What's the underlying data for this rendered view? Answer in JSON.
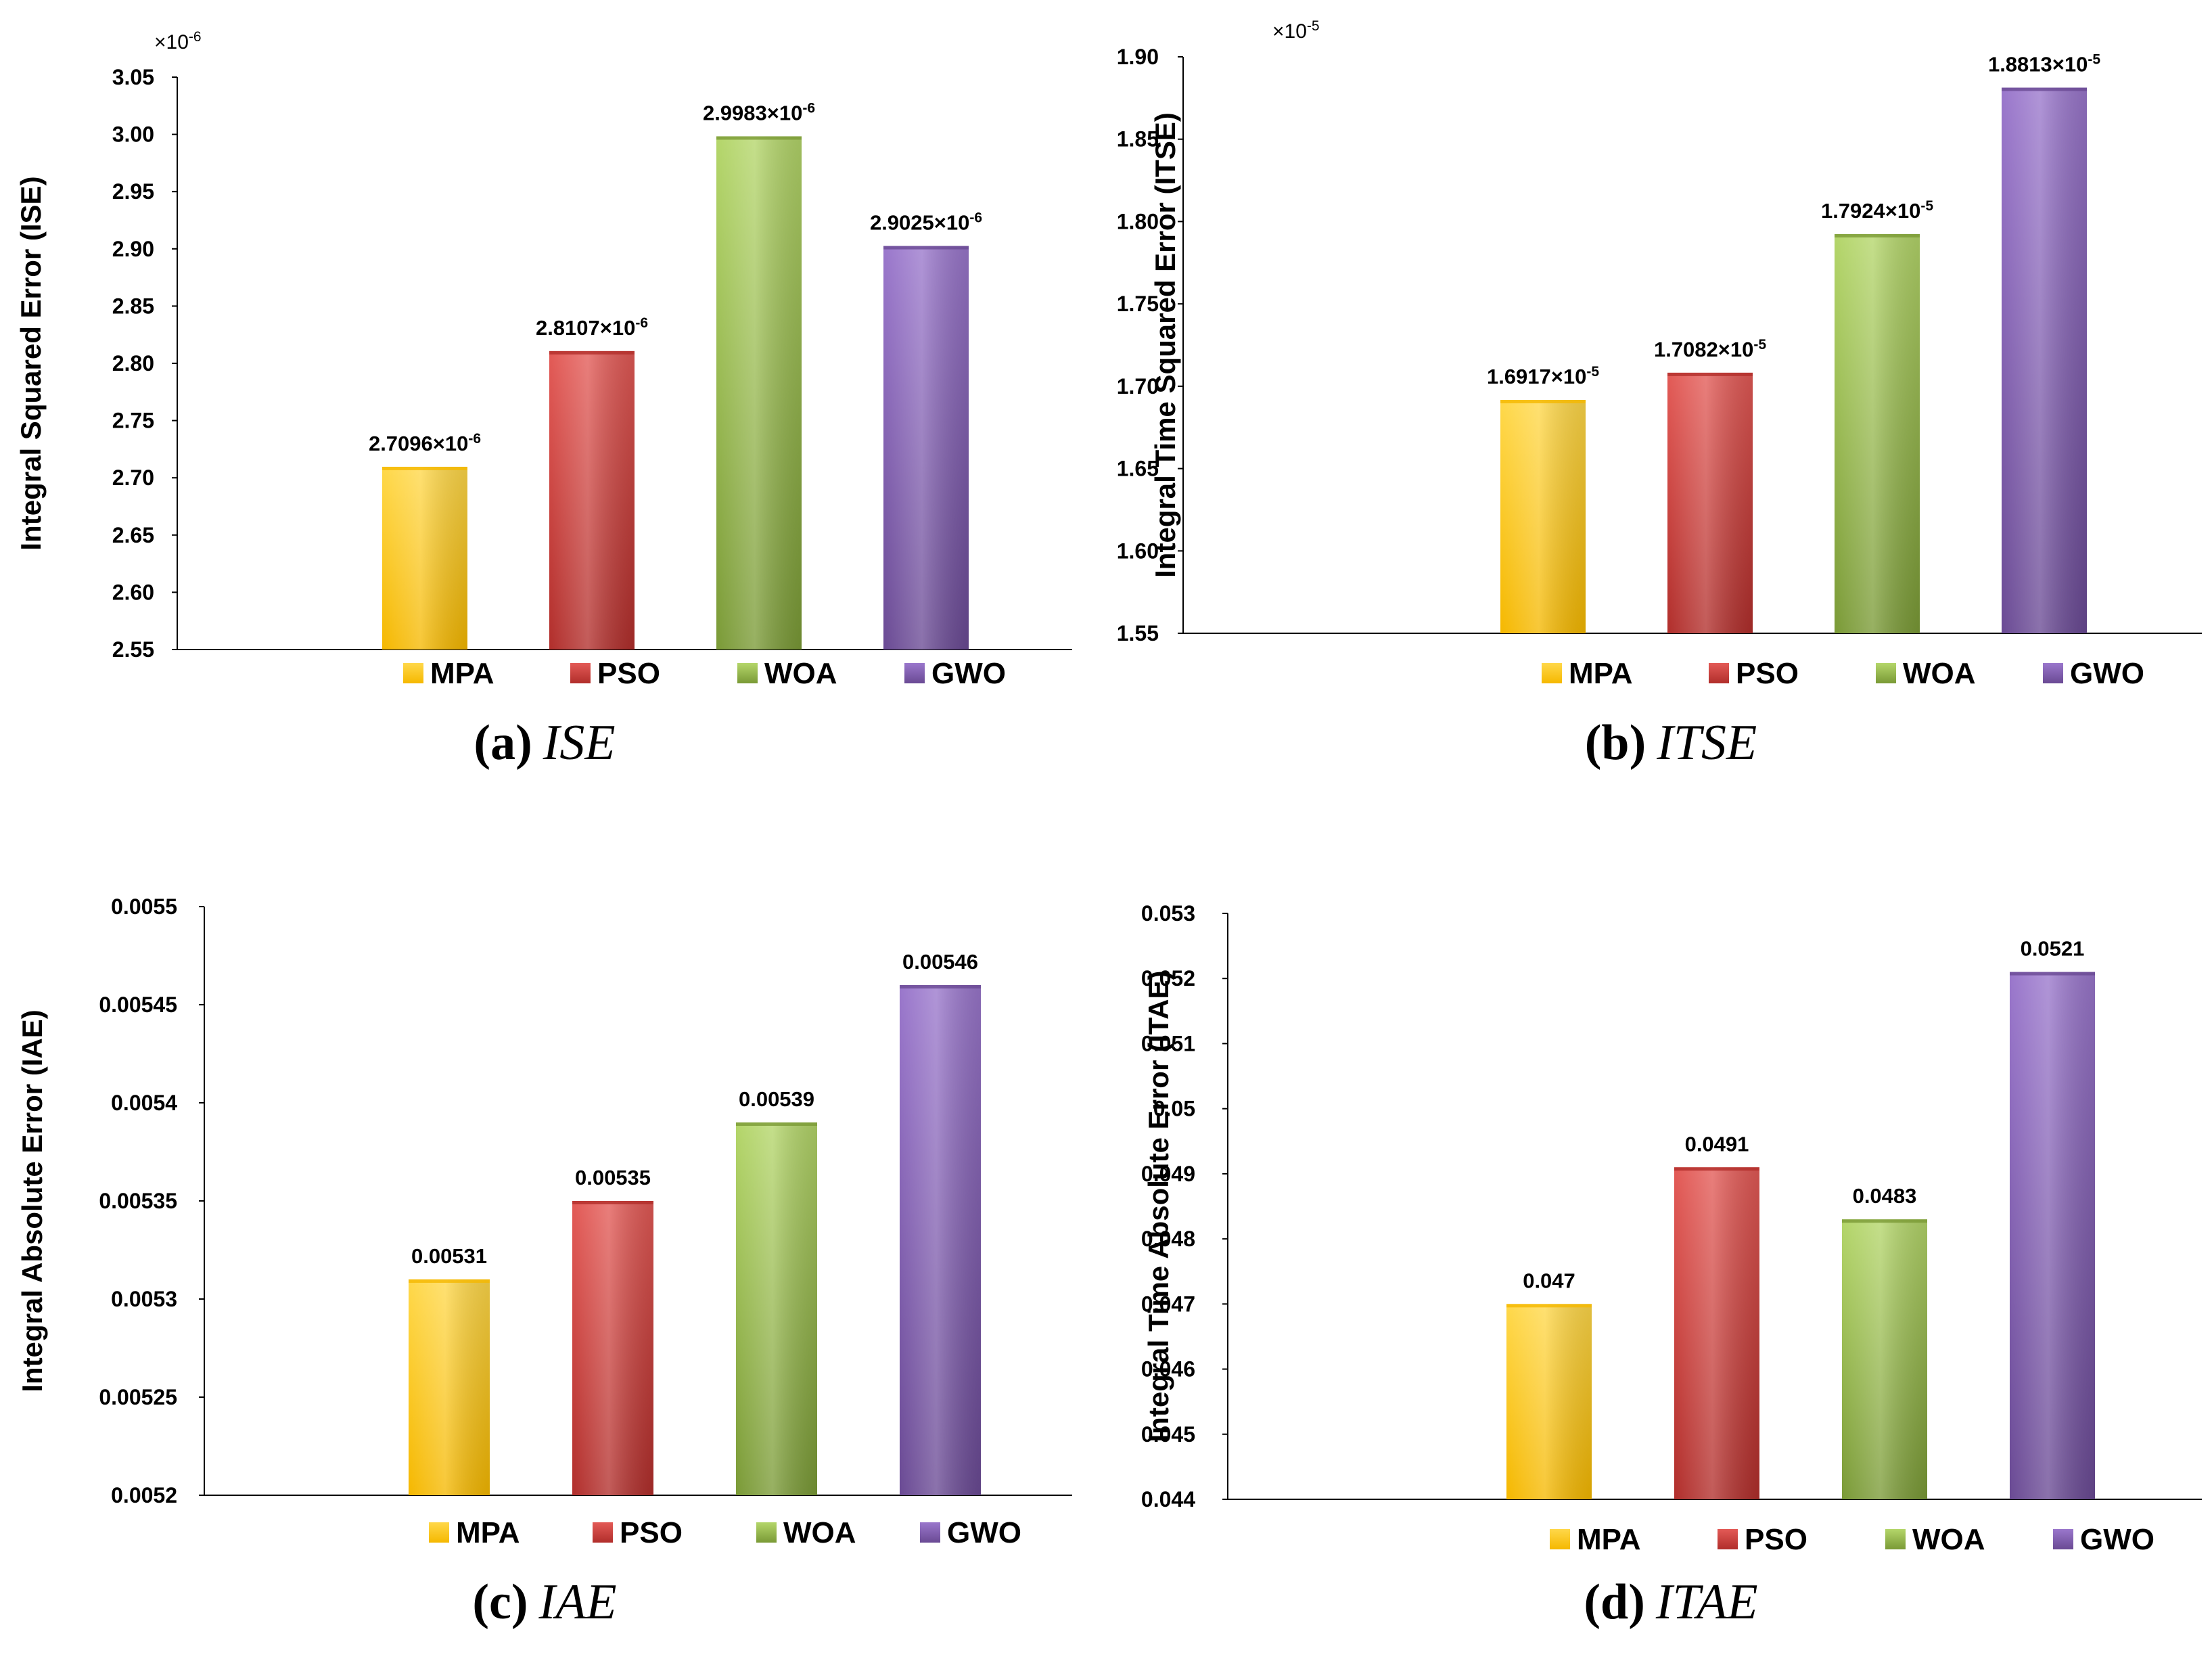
{
  "colors": {
    "MPA": [
      "#ffd84a",
      "#f5b800"
    ],
    "PSO": [
      "#e35a56",
      "#b12e2b"
    ],
    "WOA": [
      "#b4d66a",
      "#7a9a36"
    ],
    "GWO": [
      "#9a77cc",
      "#6a4a94"
    ]
  },
  "chart_data": [
    {
      "type": "bar",
      "id": "a",
      "caption_letter": "(a)",
      "caption_name": "ISE",
      "ylabel": "Integral Squared Error (ISE)",
      "multiplier": "×10",
      "multiplier_exp": "-6",
      "categories": [
        "MPA",
        "PSO",
        "WOA",
        "GWO"
      ],
      "values": [
        2.7096,
        2.8107,
        2.9983,
        2.9025
      ],
      "labels": [
        "2.7096×10",
        "2.8107×10",
        "2.9983×10",
        "2.9025×10"
      ],
      "label_exps": [
        "-6",
        "-6",
        "-6",
        "-6"
      ],
      "ylim": [
        2.55,
        3.05
      ],
      "yticks": [
        "2.55",
        "2.60",
        "2.65",
        "2.70",
        "2.75",
        "2.80",
        "2.85",
        "2.90",
        "2.95",
        "3.00",
        "3.05"
      ],
      "legend": [
        "MPA",
        "PSO",
        "WOA",
        "GWO"
      ]
    },
    {
      "type": "bar",
      "id": "b",
      "caption_letter": "(b)",
      "caption_name": "ITSE",
      "ylabel": "Integral Time Squared Error (ITSE)",
      "multiplier": "×10",
      "multiplier_exp": "-5",
      "categories": [
        "MPA",
        "PSO",
        "WOA",
        "GWO"
      ],
      "values": [
        1.6917,
        1.7082,
        1.7924,
        1.8813
      ],
      "labels": [
        "1.6917×10",
        "1.7082×10",
        "1.7924×10",
        "1.8813×10"
      ],
      "label_exps": [
        "-5",
        "-5",
        "-5",
        "-5"
      ],
      "ylim": [
        1.55,
        1.9
      ],
      "yticks": [
        "1.55",
        "1.60",
        "1.65",
        "1.70",
        "1.75",
        "1.80",
        "1.85",
        "1.90"
      ],
      "legend": [
        "MPA",
        "PSO",
        "WOA",
        "GWO"
      ]
    },
    {
      "type": "bar",
      "id": "c",
      "caption_letter": "(c)",
      "caption_name": "IAE",
      "ylabel": "Integral Absolute Error (IAE)",
      "multiplier": "",
      "multiplier_exp": "",
      "categories": [
        "MPA",
        "PSO",
        "WOA",
        "GWO"
      ],
      "values": [
        0.00531,
        0.00535,
        0.00539,
        0.00546
      ],
      "labels": [
        "0.00531",
        "0.00535",
        "0.00539",
        "0.00546"
      ],
      "label_exps": [
        "",
        "",
        "",
        ""
      ],
      "ylim": [
        0.0052,
        0.0055
      ],
      "yticks": [
        "0.0052",
        "0.00525",
        "0.0053",
        "0.00535",
        "0.0054",
        "0.00545",
        "0.0055"
      ],
      "legend": [
        "MPA",
        "PSO",
        "WOA",
        "GWO"
      ]
    },
    {
      "type": "bar",
      "id": "d",
      "caption_letter": "(d)",
      "caption_name": "ITAE",
      "ylabel": "Integral Time Absolute Error (ITAE)",
      "multiplier": "",
      "multiplier_exp": "",
      "categories": [
        "MPA",
        "PSO",
        "WOA",
        "GWO"
      ],
      "values": [
        0.047,
        0.0491,
        0.0483,
        0.0521
      ],
      "labels": [
        "0.047",
        "0.0491",
        "0.0483",
        "0.0521"
      ],
      "label_exps": [
        "",
        "",
        "",
        ""
      ],
      "ylim": [
        0.044,
        0.053
      ],
      "yticks": [
        "0.044",
        "0.045",
        "0.046",
        "0.047",
        "0.048",
        "0.049",
        "0.05",
        "0.051",
        "0.052",
        "0.053"
      ],
      "legend": [
        "MPA",
        "PSO",
        "WOA",
        "GWO"
      ]
    }
  ]
}
